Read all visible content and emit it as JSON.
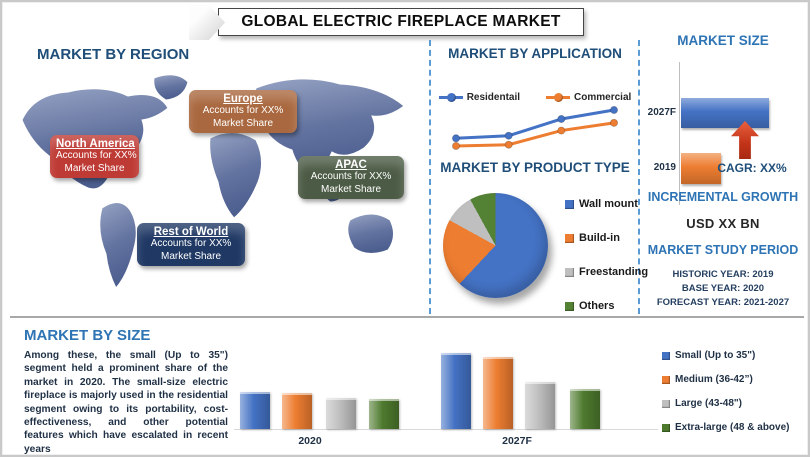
{
  "banner": {
    "title": "GLOBAL ELECTRIC FIREPLACE MARKET"
  },
  "region": {
    "heading": "MARKET BY REGION",
    "items": [
      {
        "name": "North America",
        "line1": "Accounts for XX%",
        "line2": "Market Share",
        "color": "#BE3A34"
      },
      {
        "name": "Europe",
        "line1": "Accounts for XX%",
        "line2": "Market Share",
        "color": "#A9683F"
      },
      {
        "name": "APAC",
        "line1": "Accounts for XX%",
        "line2": "Market Share",
        "color": "#4C5B45"
      },
      {
        "name": "Rest of World",
        "line1": "Accounts for XX%",
        "line2": "Market Share",
        "color": "#1F3864"
      }
    ]
  },
  "application": {
    "heading": "MARKET BY APPLICATION",
    "legend": [
      {
        "label": "Residentail",
        "color": "#4472C4"
      },
      {
        "label": "Commercial",
        "color": "#ED7D31"
      }
    ]
  },
  "product_type": {
    "heading": "MARKET BY PRODUCT TYPE",
    "legend": [
      {
        "label": "Wall mount",
        "color": "#4472C4"
      },
      {
        "label": "Build-in",
        "color": "#ED7D31"
      },
      {
        "label": "Freestanding",
        "color": "#BFBFBF"
      },
      {
        "label": "Others",
        "color": "#548235"
      }
    ]
  },
  "market_size": {
    "heading": "MARKET SIZE",
    "bar_labels": [
      "2027F",
      "2019"
    ],
    "cagr": "CAGR: XX%"
  },
  "incremental_growth": {
    "heading": "INCREMENTAL GROWTH",
    "value": "USD XX BN"
  },
  "study_period": {
    "heading": "MARKET STUDY PERIOD",
    "lines": [
      "HISTORIC YEAR: 2019",
      "BASE YEAR: 2020",
      "FORECAST YEAR: 2021-2027"
    ]
  },
  "market_by_size": {
    "heading": "MARKET BY SIZE",
    "paragraph": "Among these, the small (Up to 35\") segment held a prominent share of the market in 2020. The small-size electric fireplace is majorly used in the residential segment owing to its portability, cost-effectiveness, and other potential features which have escalated in recent years",
    "group_labels": [
      "2020",
      "2027F"
    ],
    "legend": [
      {
        "label": "Small (Up to 35\")",
        "color": "#4472C4"
      },
      {
        "label": "Medium (36-42”)",
        "color": "#ED7D31"
      },
      {
        "label": "Large (43-48\")",
        "color": "#BFBFBF"
      },
      {
        "label": "Extra-large (48 & above)",
        "color": "#4E7A2E"
      }
    ]
  },
  "chart_data": [
    {
      "id": "application_trend",
      "type": "line",
      "title": "MARKET BY APPLICATION",
      "x": [
        1,
        2,
        3,
        4
      ],
      "series": [
        {
          "name": "Residentail",
          "color": "#4472C4",
          "values": [
            30,
            32,
            45,
            52
          ]
        },
        {
          "name": "Commercial",
          "color": "#ED7D31",
          "values": [
            24,
            25,
            36,
            42
          ]
        }
      ],
      "axis_labels": "none shown (illustrative upward trend, values estimated from pixel positions)",
      "legend_position": "top"
    },
    {
      "id": "product_type_share",
      "type": "pie",
      "title": "MARKET BY PRODUCT TYPE",
      "labels": [
        "Wall mount",
        "Build-in",
        "Freestanding",
        "Others"
      ],
      "values": [
        62,
        21,
        9,
        8
      ],
      "colors": [
        "#4472C4",
        "#ED7D31",
        "#BFBFBF",
        "#548235"
      ],
      "legend_position": "right",
      "note": "share percentages estimated from slice angles; no data labels shown"
    },
    {
      "id": "market_size_bars",
      "type": "bar",
      "orientation": "horizontal",
      "title": "MARKET SIZE",
      "categories": [
        "2027F",
        "2019"
      ],
      "values": [
        88,
        40
      ],
      "colors": [
        "#4472C4",
        "#ED7D31"
      ],
      "annotation": "CAGR: XX%",
      "note": "bar lengths relative (no axis values shown)"
    },
    {
      "id": "market_by_size_grouped",
      "type": "bar",
      "title": "MARKET BY SIZE",
      "categories": [
        "2020",
        "2027F"
      ],
      "series": [
        {
          "name": "Small (Up to 35\")",
          "color": "#4472C4",
          "values": [
            37,
            76
          ]
        },
        {
          "name": "Medium (36-42”)",
          "color": "#ED7D31",
          "values": [
            36,
            72
          ]
        },
        {
          "name": "Large (43-48\")",
          "color": "#BFBFBF",
          "values": [
            31,
            47
          ]
        },
        {
          "name": "Extra-large (48 & above)",
          "color": "#4E7A2E",
          "values": [
            30,
            40
          ]
        }
      ],
      "ylim": [
        0,
        96
      ],
      "grid": false,
      "legend_position": "right",
      "note": "heights relative in px units (no axis values shown)"
    }
  ]
}
